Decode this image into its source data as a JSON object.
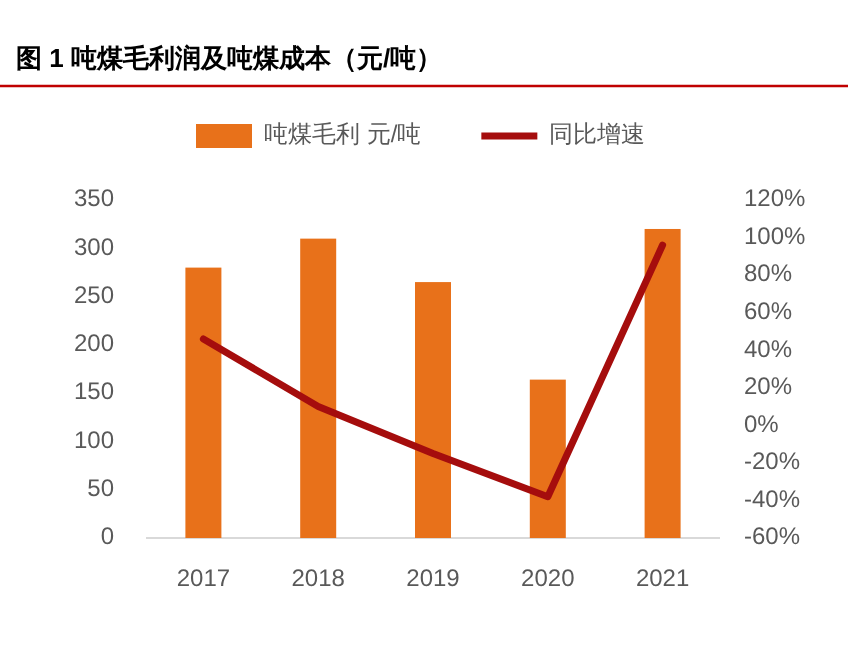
{
  "chart_data": {
    "type": "bar",
    "title": "图 1  吨煤毛利润及吨煤成本（元/吨）",
    "categories": [
      "2017",
      "2018",
      "2019",
      "2020",
      "2021"
    ],
    "series": [
      {
        "name": "吨煤毛利 元/吨",
        "color": "#e8711a",
        "values": [
          280,
          310,
          265,
          164,
          320
        ]
      },
      {
        "name": "同比增速",
        "type": "line",
        "axis": "y2",
        "color": "#a50d0d",
        "values": [
          46,
          10,
          -15,
          -38,
          96
        ]
      }
    ],
    "ylim": [
      0,
      350
    ],
    "yticks": [
      0,
      50,
      100,
      150,
      200,
      250,
      300,
      350
    ],
    "y2lim": [
      -60,
      120
    ],
    "y2ticks": [
      {
        "value": -60,
        "label": "-60%"
      },
      {
        "value": -40,
        "label": "-40%"
      },
      {
        "value": -20,
        "label": "-20%"
      },
      {
        "value": 0,
        "label": "0%"
      },
      {
        "value": 20,
        "label": "20%"
      },
      {
        "value": 40,
        "label": "40%"
      },
      {
        "value": 60,
        "label": "60%"
      },
      {
        "value": 80,
        "label": "80%"
      },
      {
        "value": 100,
        "label": "100%"
      },
      {
        "value": 120,
        "label": "120%"
      }
    ],
    "legend": "top",
    "grid": false
  }
}
